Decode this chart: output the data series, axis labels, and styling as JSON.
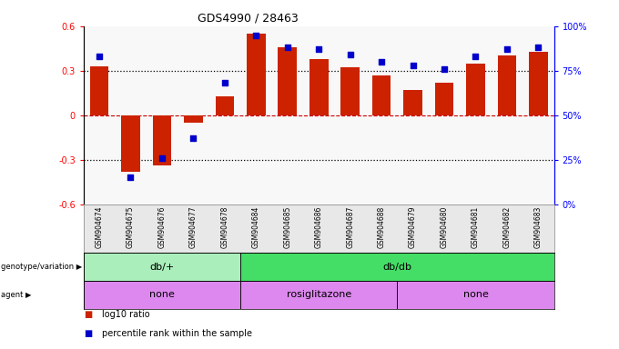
{
  "title": "GDS4990 / 28463",
  "samples": [
    "GSM904674",
    "GSM904675",
    "GSM904676",
    "GSM904677",
    "GSM904678",
    "GSM904684",
    "GSM904685",
    "GSM904686",
    "GSM904687",
    "GSM904688",
    "GSM904679",
    "GSM904680",
    "GSM904681",
    "GSM904682",
    "GSM904683"
  ],
  "log10_ratio": [
    0.33,
    -0.38,
    -0.34,
    -0.05,
    0.13,
    0.55,
    0.46,
    0.38,
    0.32,
    0.27,
    0.17,
    0.22,
    0.35,
    0.4,
    0.43
  ],
  "percentile": [
    83,
    15,
    26,
    37,
    68,
    95,
    88,
    87,
    84,
    80,
    78,
    76,
    83,
    87,
    88
  ],
  "ylim_left": [
    -0.6,
    0.6
  ],
  "ylim_right": [
    0,
    100
  ],
  "bar_color": "#cc2200",
  "dot_color": "#0000cc",
  "yticks_left": [
    -0.6,
    -0.3,
    0.0,
    0.3,
    0.6
  ],
  "yticks_right": [
    0,
    25,
    50,
    75,
    100
  ],
  "genotype_groups": [
    {
      "label": "db/+",
      "start": 0,
      "end": 5,
      "color": "#aaeebb"
    },
    {
      "label": "db/db",
      "start": 5,
      "end": 15,
      "color": "#44dd66"
    }
  ],
  "agent_groups": [
    {
      "label": "none",
      "start": 0,
      "end": 5,
      "color": "#dd88ee"
    },
    {
      "label": "rosiglitazone",
      "start": 5,
      "end": 10,
      "color": "#dd88ee"
    },
    {
      "label": "none",
      "start": 10,
      "end": 15,
      "color": "#dd88ee"
    }
  ],
  "genotype_label": "genotype/variation",
  "agent_label": "agent",
  "background_color": "#ffffff",
  "plot_bg": "#ffffff"
}
